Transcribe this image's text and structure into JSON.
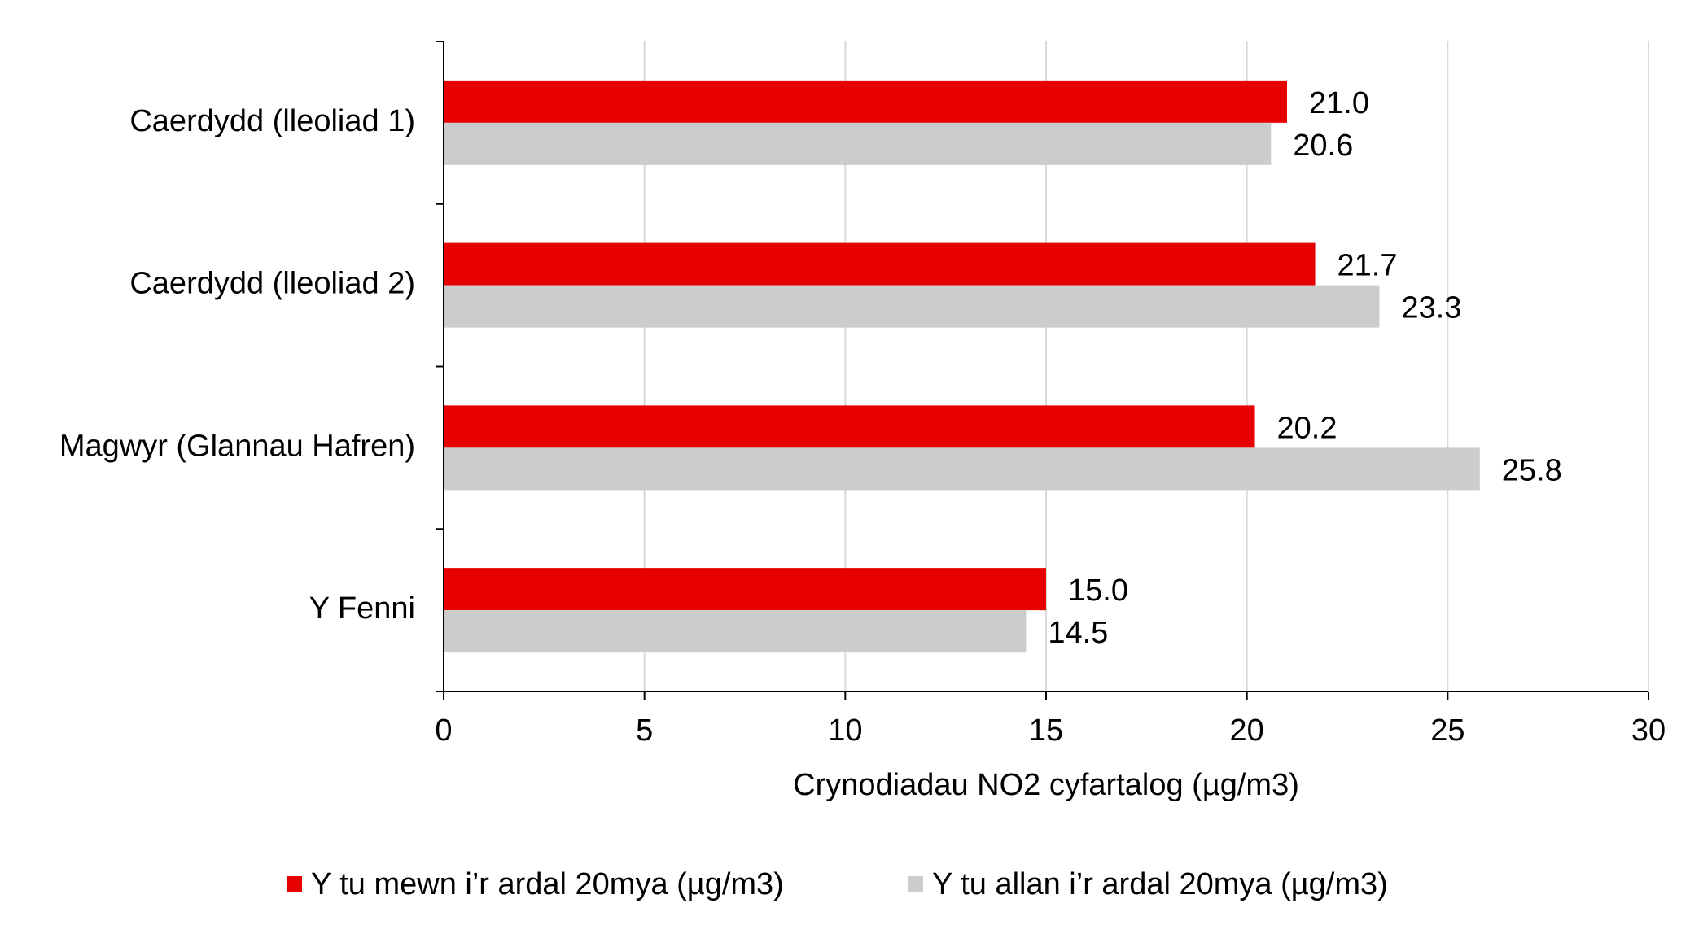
{
  "chart_data": {
    "type": "hbar",
    "x_label": "Crynodiadau NO2 cyfartalog (µg/m3)",
    "categories": [
      "Caerdydd (lleoliad 1)",
      "Caerdydd (lleoliad 2)",
      "Magwyr (Glannau Hafren)",
      "Y Fenni"
    ],
    "series": [
      {
        "name": "Y tu mewn i’r ardal 20mya (µg/m3)",
        "color": "#e60000",
        "values": [
          21.0,
          21.7,
          20.2,
          15.0
        ],
        "value_labels": [
          "21.0",
          "21.7",
          "20.2",
          "15.0"
        ]
      },
      {
        "name": "Y tu allan i’r ardal 20mya (µg/m3)",
        "color": "#cccccc",
        "values": [
          20.6,
          23.3,
          25.8,
          14.5
        ],
        "value_labels": [
          "20.6",
          "23.3",
          "25.8",
          "14.5"
        ]
      }
    ],
    "xlim": [
      0,
      30
    ],
    "xticks": [
      0,
      5,
      10,
      15,
      20,
      25,
      30
    ],
    "grid": true,
    "legend": "bottom"
  }
}
